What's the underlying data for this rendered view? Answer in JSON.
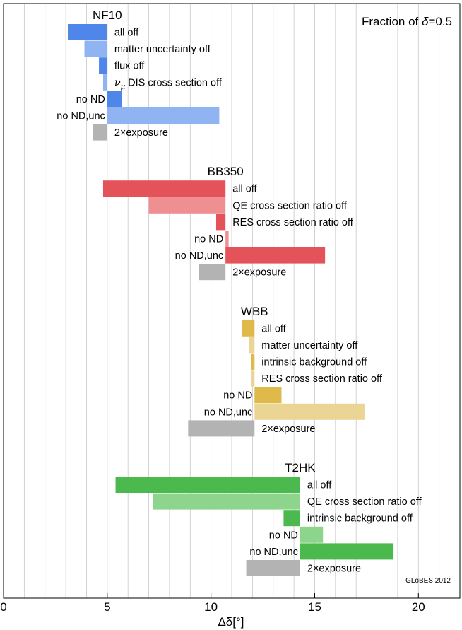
{
  "chart_data": {
    "type": "bar",
    "orientation": "horizontal",
    "annotation": {
      "prefix": "Fraction of ",
      "symbol": "δ",
      "suffix": "=0.5"
    },
    "xlabel": "Δδ[°]",
    "xlim": [
      0,
      22
    ],
    "xticks": [
      0,
      5,
      10,
      15,
      20
    ],
    "credit": "GLoBES 2012",
    "grid": "vertical-every-1",
    "groups": [
      {
        "name": "NF10",
        "reference": 5.0,
        "color": "#4f86ea",
        "light": "#90b3f2",
        "bars": [
          {
            "label": "all off",
            "value": 3.1,
            "shade": "dark"
          },
          {
            "label": "matter uncertainty off",
            "value": 3.9,
            "shade": "light"
          },
          {
            "label": "flux off",
            "value": 4.6,
            "shade": "dark"
          },
          {
            "label": "ν_μ DIS cross section off",
            "value": 4.8,
            "shade": "light"
          },
          {
            "label": "no ND",
            "value": 5.7,
            "shade": "dark"
          },
          {
            "label": "no ND,unc",
            "value": 10.4,
            "shade": "light"
          },
          {
            "label": "2×exposure",
            "value": 4.3,
            "shade": "gray"
          }
        ]
      },
      {
        "name": "BB350",
        "reference": 10.7,
        "color": "#e5535a",
        "light": "#ef8f91",
        "bars": [
          {
            "label": "all off",
            "value": 4.8,
            "shade": "dark"
          },
          {
            "label": "QE cross section ratio off",
            "value": 7.0,
            "shade": "light"
          },
          {
            "label": "RES cross section ratio off",
            "value": 10.25,
            "shade": "dark"
          },
          {
            "label": "no ND",
            "value": 10.85,
            "shade": "light"
          },
          {
            "label": "no ND,unc",
            "value": 15.5,
            "shade": "dark"
          },
          {
            "label": "2×exposure",
            "value": 9.4,
            "shade": "gray"
          }
        ]
      },
      {
        "name": "WBB",
        "reference": 12.1,
        "color": "#dfb94a",
        "light": "#ead594",
        "bars": [
          {
            "label": "all off",
            "value": 11.5,
            "shade": "dark"
          },
          {
            "label": "matter uncertainty off",
            "value": 11.85,
            "shade": "light"
          },
          {
            "label": "intrinsic background off",
            "value": 11.95,
            "shade": "dark"
          },
          {
            "label": "RES cross section ratio off",
            "value": 11.95,
            "shade": "light"
          },
          {
            "label": "no ND",
            "value": 13.4,
            "shade": "dark"
          },
          {
            "label": "no ND,unc",
            "value": 17.4,
            "shade": "light"
          },
          {
            "label": "2×exposure",
            "value": 8.9,
            "shade": "gray"
          }
        ]
      },
      {
        "name": "T2HK",
        "reference": 14.3,
        "color": "#4cb94f",
        "light": "#8dd58d",
        "bars": [
          {
            "label": "all off",
            "value": 5.4,
            "shade": "dark"
          },
          {
            "label": "QE cross section ratio off",
            "value": 7.2,
            "shade": "light"
          },
          {
            "label": "intrinsic background off",
            "value": 13.5,
            "shade": "dark"
          },
          {
            "label": "no ND",
            "value": 15.4,
            "shade": "light"
          },
          {
            "label": "no ND,unc",
            "value": 18.8,
            "shade": "dark"
          },
          {
            "label": "2×exposure",
            "value": 11.7,
            "shade": "gray"
          }
        ]
      }
    ]
  }
}
